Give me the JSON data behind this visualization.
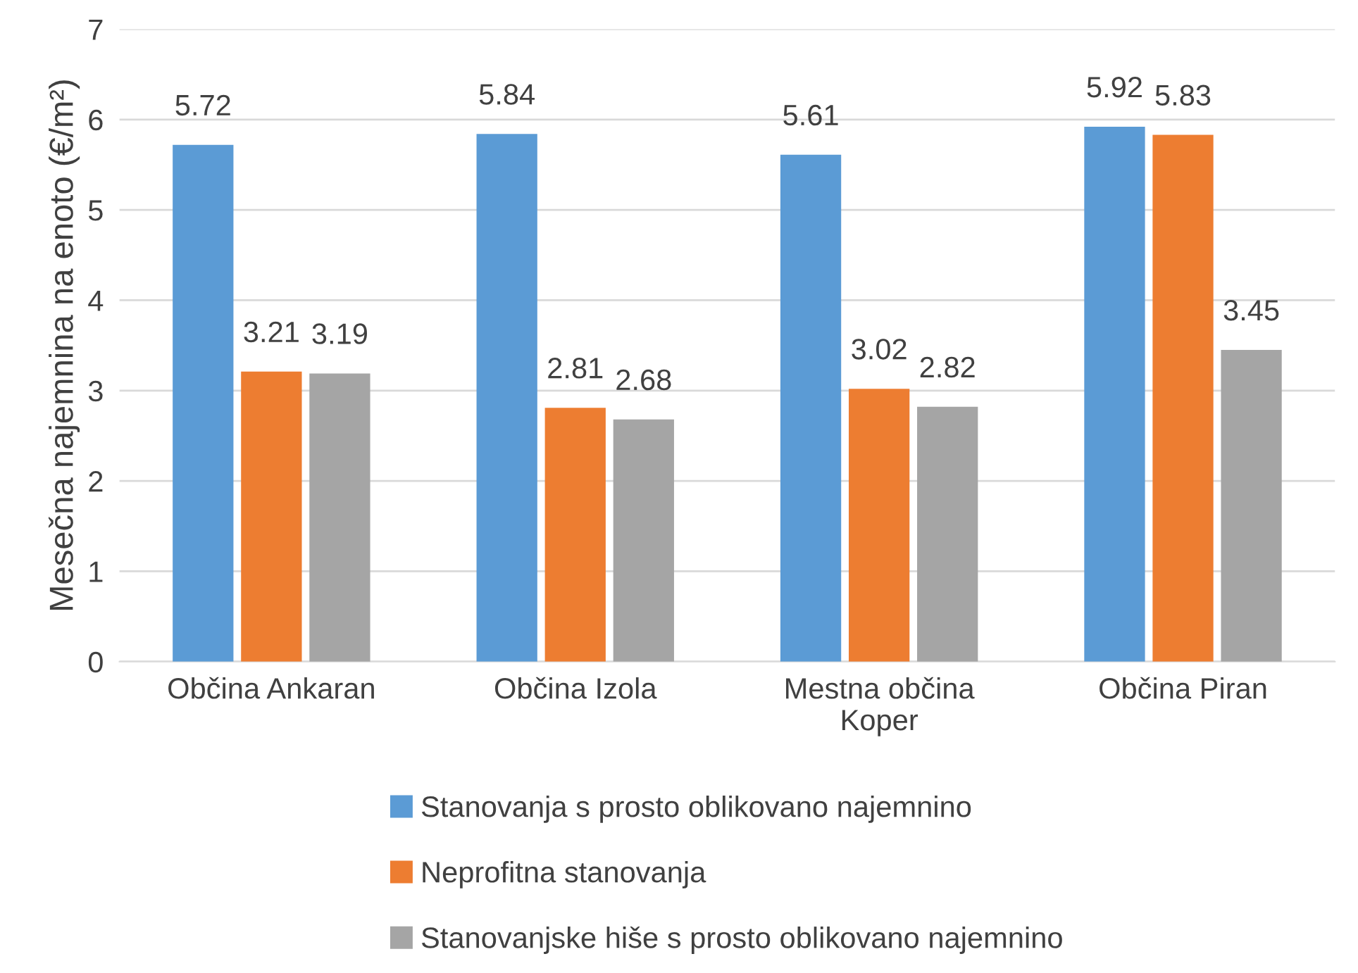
{
  "chart_data": {
    "type": "bar",
    "ylabel": "Mesečna najemnina na enoto (€/m²)",
    "categories": [
      "Občina Ankaran",
      "Občina Izola",
      "Mestna občina Koper",
      "Občina Piran"
    ],
    "series": [
      {
        "name": "Stanovanja s prosto oblikovano najemnino",
        "color": "#5b9bd5",
        "values": [
          5.72,
          5.84,
          5.61,
          5.92
        ]
      },
      {
        "name": "Neprofitna stanovanja",
        "color": "#ed7d31",
        "values": [
          3.21,
          2.81,
          3.02,
          5.83
        ]
      },
      {
        "name": "Stanovanjske hiše s prosto oblikovano najemnino",
        "color": "#a5a5a5",
        "values": [
          3.19,
          2.68,
          2.82,
          3.45
        ]
      }
    ],
    "ylim": [
      0,
      7
    ],
    "yticks": [
      0,
      1,
      2,
      3,
      4,
      5,
      6,
      7
    ],
    "grid": "y",
    "legend": "bottom",
    "data_labels": true
  }
}
